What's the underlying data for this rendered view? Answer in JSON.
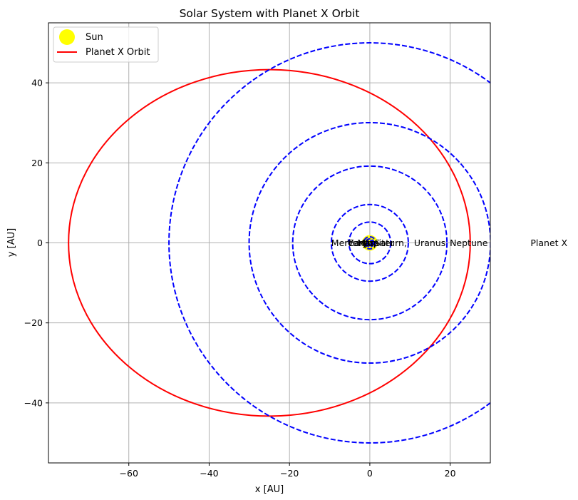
{
  "chart_data": {
    "type": "scatter",
    "title": "Solar System with Planet X Orbit",
    "xlabel": "x [AU]",
    "ylabel": "y [AU]",
    "xlim": [
      -80,
      30
    ],
    "ylim": [
      -55,
      55
    ],
    "xticks": [
      -60,
      -40,
      -20,
      0,
      20
    ],
    "yticks": [
      -40,
      -20,
      0,
      20,
      40
    ],
    "xtick_labels": [
      "−60",
      "−40",
      "−20",
      "0",
      "20"
    ],
    "ytick_labels": [
      "−40",
      "−20",
      "0",
      "20",
      "40"
    ],
    "grid": true,
    "legend_position": "upper-left",
    "legend": [
      "Sun",
      "Planet X Orbit"
    ],
    "sun": {
      "name": "Sun",
      "x": 0,
      "y": 0,
      "color": "#ffff00"
    },
    "planets": [
      {
        "name": "Mercury",
        "radius": 0.39
      },
      {
        "name": "Venus",
        "radius": 0.72
      },
      {
        "name": "Earth",
        "radius": 1.0
      },
      {
        "name": "Mars",
        "radius": 1.52
      },
      {
        "name": "Jupiter",
        "radius": 5.2
      },
      {
        "name": "Saturn",
        "radius": 9.58
      },
      {
        "name": "Uranus",
        "radius": 19.2
      },
      {
        "name": "Neptune",
        "radius": 30.05
      },
      {
        "name": "Planet X",
        "radius": 50
      }
    ],
    "planet_labels": [
      {
        "text": "Mercury",
        "x": -9.6
      },
      {
        "text": "Venus",
        "x": -5.6
      },
      {
        "text": "Earth",
        "x": -5.3
      },
      {
        "text": "Mars",
        "x": -3.1
      },
      {
        "text": "Jupiter",
        "x": -1.2
      },
      {
        "text": "Saturn,",
        "x": 1.2
      },
      {
        "text": "Uranus",
        "x": 11.0
      },
      {
        "text": "Neptune",
        "x": 19.9
      },
      {
        "text": "Planet X",
        "x": 40.0
      }
    ],
    "orbit_color": "#0000ff",
    "planet_x_orbit": {
      "name": "Planet X Orbit",
      "center_x": -25,
      "center_y": 0,
      "semi_major": 50,
      "semi_minor": 43.3,
      "color": "#ff0000"
    }
  }
}
